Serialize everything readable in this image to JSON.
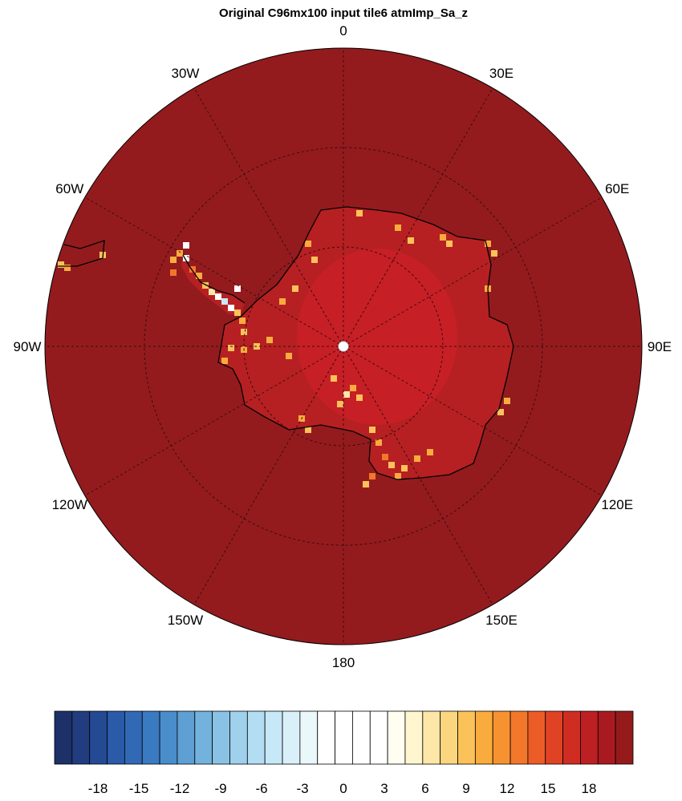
{
  "title": "Original C96mx100 input tile6 atmImp_Sa_z",
  "lon_labels": [
    "0",
    "30E",
    "60E",
    "90E",
    "120E",
    "150E",
    "180",
    "150W",
    "120W",
    "90W",
    "60W",
    "30W"
  ],
  "colorbar": {
    "tick_labels": [
      "-18",
      "-15",
      "-12",
      "-9",
      "-6",
      "-3",
      "0",
      "3",
      "6",
      "9",
      "12",
      "15",
      "18"
    ],
    "colors": [
      "#1d3068",
      "#213d80",
      "#244a94",
      "#2a5aa8",
      "#3169b4",
      "#3a7ac0",
      "#4a8dcb",
      "#5e9fd4",
      "#73b2dc",
      "#89c2e4",
      "#9fd0ec",
      "#b3ddf2",
      "#c7e8f6",
      "#d9f0f9",
      "#eaf7fb",
      "#ffffff",
      "#ffffff",
      "#ffffff",
      "#ffffff",
      "#fffef0",
      "#fff6cf",
      "#fde7a8",
      "#fcd67f",
      "#fbc25a",
      "#f9ab3e",
      "#f69330",
      "#f2772a",
      "#ec5c27",
      "#e04324",
      "#d02d22",
      "#bd2022",
      "#a81a20",
      "#951a1c"
    ]
  },
  "field": {
    "ocean_color": "#931b1e",
    "continent_color": "#b62022",
    "interior_color": "#c71f26",
    "hotspot_colors": [
      "#fbc25a",
      "#f9ab3e",
      "#f2772a",
      "#fde7a8",
      "#ffffff",
      "#c7e8f6"
    ]
  }
}
